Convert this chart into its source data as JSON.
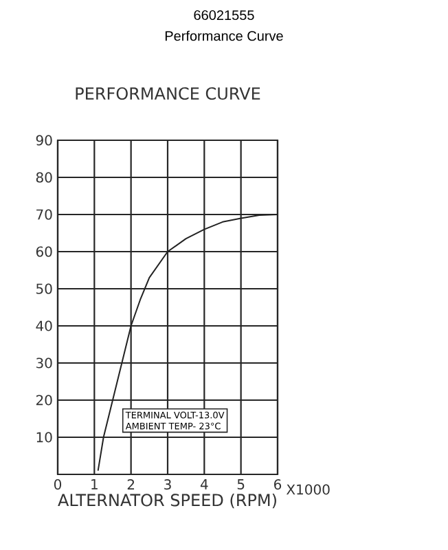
{
  "chart_data": {
    "type": "line",
    "title": "66021555",
    "subtitle": "Performance Curve",
    "xlabel": "ALTERNATOR SPEED (RPM)",
    "annotations": [
      "PERFORMANCE CURVE",
      "TERMINAL VOLT-13.0V",
      "AMBIENT TEMP- 23°C",
      "X1000"
    ],
    "x": [
      1.1,
      1.25,
      1.5,
      1.75,
      2,
      2.25,
      2.5,
      3,
      3.5,
      4,
      4.5,
      5,
      5.5,
      6
    ],
    "values": [
      1,
      10,
      20,
      30,
      40,
      47,
      53,
      60,
      63.5,
      66,
      68,
      69,
      69.8,
      70
    ],
    "color": "#222222",
    "line_style": "solid",
    "xlim": [
      0,
      6
    ],
    "xticks": [
      0,
      1,
      2,
      3,
      4,
      5,
      6
    ],
    "ylim": [
      0,
      90
    ],
    "yticks": [
      10,
      20,
      30,
      40,
      50,
      60,
      70,
      80,
      90
    ],
    "grid": true
  }
}
